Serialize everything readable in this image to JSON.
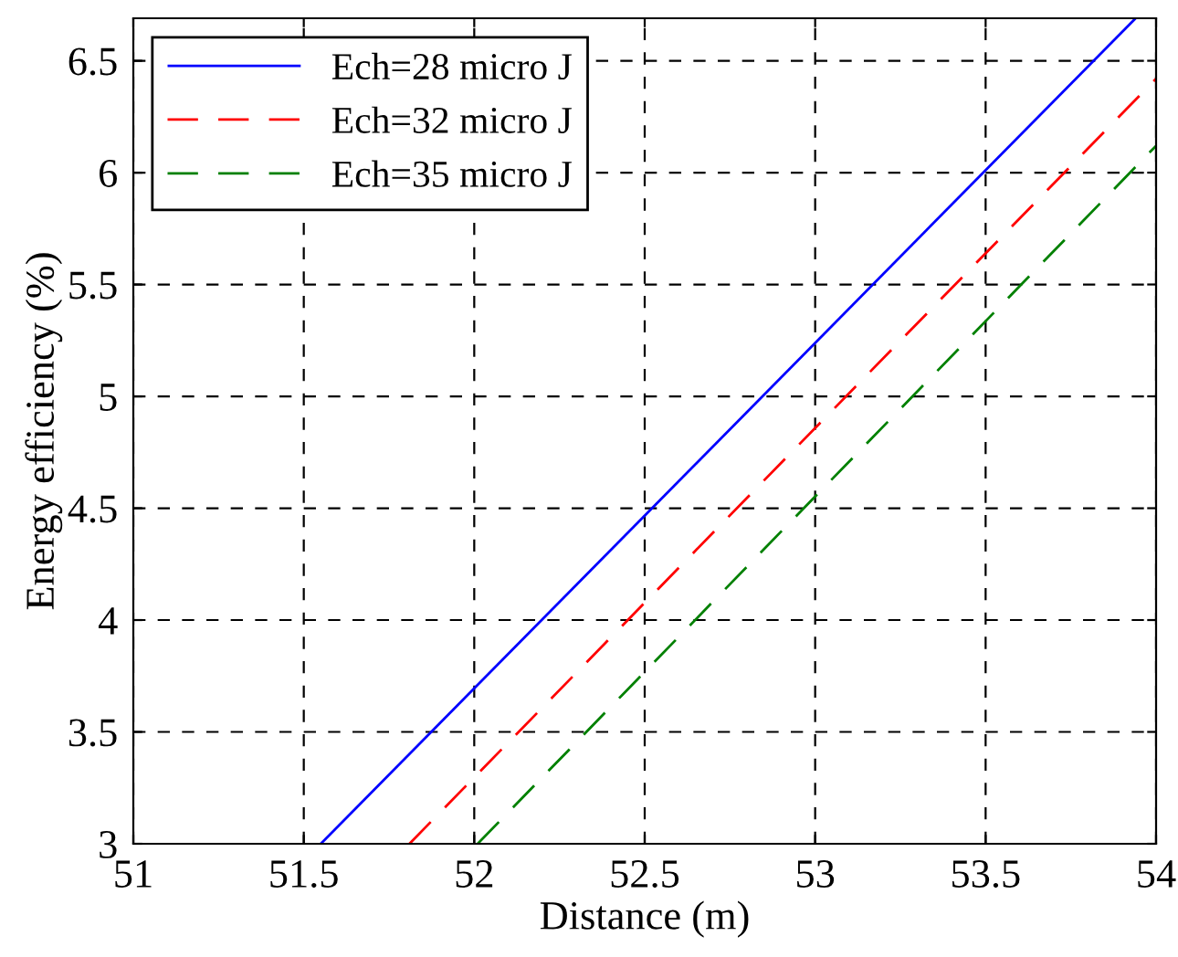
{
  "chart_data": {
    "type": "line",
    "xlabel": "Distance (m)",
    "ylabel": "Energy efficiency (%)",
    "xlim": [
      51,
      54
    ],
    "ylim": [
      3,
      6.69
    ],
    "xticks": [
      51,
      51.5,
      52,
      52.5,
      53,
      53.5,
      54
    ],
    "yticks": [
      3,
      3.5,
      4,
      4.5,
      5,
      5.5,
      6,
      6.5
    ],
    "grid": true,
    "legend": "top left",
    "marker": "none",
    "series": [
      {
        "name": "Ech=28 micro J",
        "color": "#0000ff",
        "line_style": "solid",
        "x": [
          51.55,
          53.94
        ],
        "values": [
          3,
          6.69
        ]
      },
      {
        "name": "Ech=32 micro J",
        "color": "#ff0000",
        "line_style": "dashed",
        "x": [
          51.81,
          54
        ],
        "values": [
          3,
          6.42
        ]
      },
      {
        "name": "Ech=35 micro J",
        "color": "#008000",
        "line_style": "dashed",
        "x": [
          52.01,
          54
        ],
        "values": [
          3,
          6.12
        ]
      }
    ]
  }
}
